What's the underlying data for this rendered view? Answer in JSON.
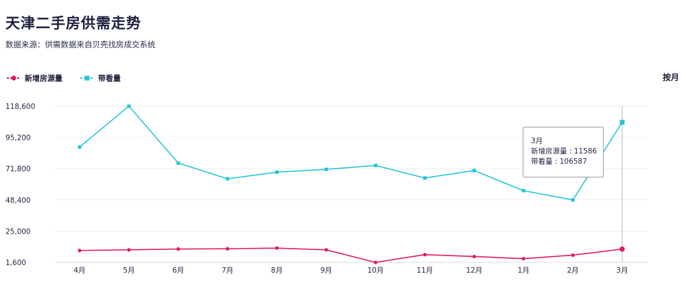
{
  "title": "天津二手房供需走势",
  "subtitle": "数据来源：供需数据来自贝壳找房成交系统",
  "period_toggle": "按月",
  "tooltip": {
    "month": "3月",
    "line1": "新增房源量 : 11586",
    "line2": "带看量 : 106587"
  },
  "colors": {
    "new_listings": "#e0195e",
    "viewings": "#26c3d9",
    "grid": "#eeeeee",
    "text": "#1f2340"
  },
  "chart_data": {
    "type": "line",
    "categories": [
      "4月",
      "5月",
      "6月",
      "7月",
      "8月",
      "9月",
      "10月",
      "11月",
      "12月",
      "1月",
      "2月",
      "3月"
    ],
    "series": [
      {
        "name": "新增房源量",
        "marker": "circle",
        "values": [
          10500,
          11000,
          11600,
          11800,
          12300,
          11000,
          1600,
          7400,
          6000,
          4400,
          7000,
          11586
        ]
      },
      {
        "name": "带看量",
        "marker": "square",
        "values": [
          88000,
          118600,
          76000,
          64200,
          69200,
          71300,
          74200,
          64800,
          70400,
          55300,
          48400,
          106587
        ]
      }
    ],
    "y_ticks": [
      "1,600",
      "25,000",
      "48,400",
      "71,800",
      "95,200",
      "118,600"
    ],
    "ylim": [
      1600,
      118600
    ],
    "grid": true,
    "legend_position": "top-left",
    "highlight_index": 11
  }
}
